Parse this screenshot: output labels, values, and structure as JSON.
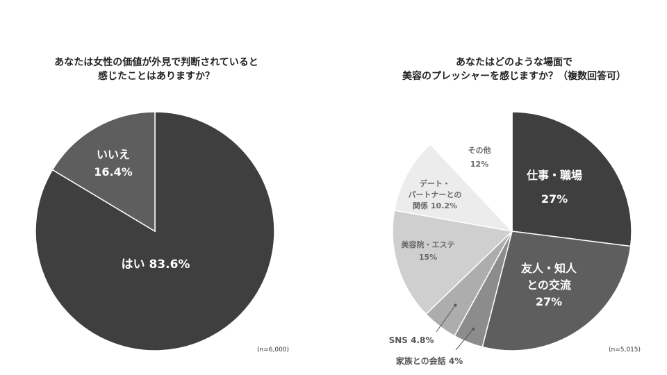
{
  "chart_data": [
    {
      "type": "pie",
      "title": "あなたは女性の価値が外見で判断されていると\n感じたことはありますか？",
      "note": "(n=6,000)",
      "slices": [
        {
          "label": "はい",
          "value": 83.6,
          "value_text": "83.6%",
          "color": "#3f3f3f",
          "text_color": "#ffffff"
        },
        {
          "label": "いいえ",
          "value": 16.4,
          "value_text": "16.4%",
          "color": "#5e5e5e",
          "text_color": "#ffffff"
        }
      ]
    },
    {
      "type": "pie",
      "title": "あなたはどのような場面で\n美容のプレッシャーを感じますか？（複数回答可）",
      "note": "(n=5,015)",
      "slices": [
        {
          "label": "仕事・職場",
          "value": 27,
          "value_text": "27%",
          "color": "#3f3f3f",
          "text_color": "#ffffff"
        },
        {
          "label": "友人・知人との交流",
          "value": 27,
          "value_text": "27%",
          "color": "#5e5e5e",
          "text_color": "#ffffff"
        },
        {
          "label": "家族との会話",
          "value": 4,
          "value_text": "4%",
          "color": "#8c8c8c",
          "text_color": "#555555"
        },
        {
          "label": "SNS",
          "value": 4.8,
          "value_text": "4.8%",
          "color": "#adadad",
          "text_color": "#555555"
        },
        {
          "label": "美容院・エステ",
          "value": 15,
          "value_text": "15%",
          "color": "#cfcfcf",
          "text_color": "#6a6a6a"
        },
        {
          "label": "デート・パートナーとの関係",
          "value": 10.2,
          "value_text": "10.2%",
          "color": "#ececec",
          "text_color": "#6a6a6a"
        },
        {
          "label": "その他",
          "value": 12,
          "value_text": "12%",
          "color": "#ffffff",
          "text_color": "#6a6a6a"
        }
      ]
    }
  ]
}
